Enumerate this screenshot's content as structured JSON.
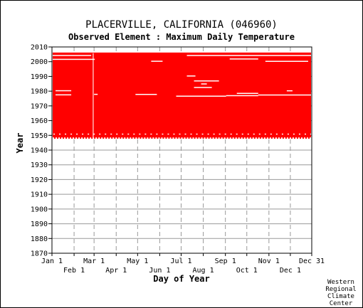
{
  "chart_data": {
    "type": "bar",
    "title": "PLACERVILLE, CALIFORNIA   (046960)",
    "subtitle": "Observed Element : Maximum Daily Temperature",
    "xlabel": "Day of Year",
    "ylabel": "Year",
    "ylim": [
      1870,
      2010
    ],
    "xlim": [
      1,
      365
    ],
    "grid": true,
    "y_ticks": [
      "1870",
      "1880",
      "1890",
      "1900",
      "1910",
      "1920",
      "1930",
      "1940",
      "1950",
      "1960",
      "1970",
      "1980",
      "1990",
      "2000",
      "2010"
    ],
    "x_ticks_top": [
      {
        "label": "Jan 1",
        "day": 1
      },
      {
        "label": "Mar 1",
        "day": 60
      },
      {
        "label": "May 1",
        "day": 121
      },
      {
        "label": "Jul 1",
        "day": 182
      },
      {
        "label": "Sep 1",
        "day": 244
      },
      {
        "label": "Nov 1",
        "day": 305
      },
      {
        "label": "Dec 31",
        "day": 365
      }
    ],
    "x_ticks_bottom": [
      {
        "label": "Feb 1",
        "day": 32
      },
      {
        "label": "Apr 1",
        "day": 91
      },
      {
        "label": "Jun 1",
        "day": 152
      },
      {
        "label": "Aug 1",
        "day": 213
      },
      {
        "label": "Oct 1",
        "day": 274
      },
      {
        "label": "Dec 1",
        "day": 335
      }
    ],
    "coverage": {
      "color": "#ff0000",
      "start_year": 1948,
      "end_year": 2005,
      "note_gaps_years": [
        1977,
        1978,
        1980,
        2000,
        2004
      ]
    }
  },
  "credit": {
    "line1": "Western",
    "line2": "Regional",
    "line3": "Climate",
    "line4": "Center"
  }
}
